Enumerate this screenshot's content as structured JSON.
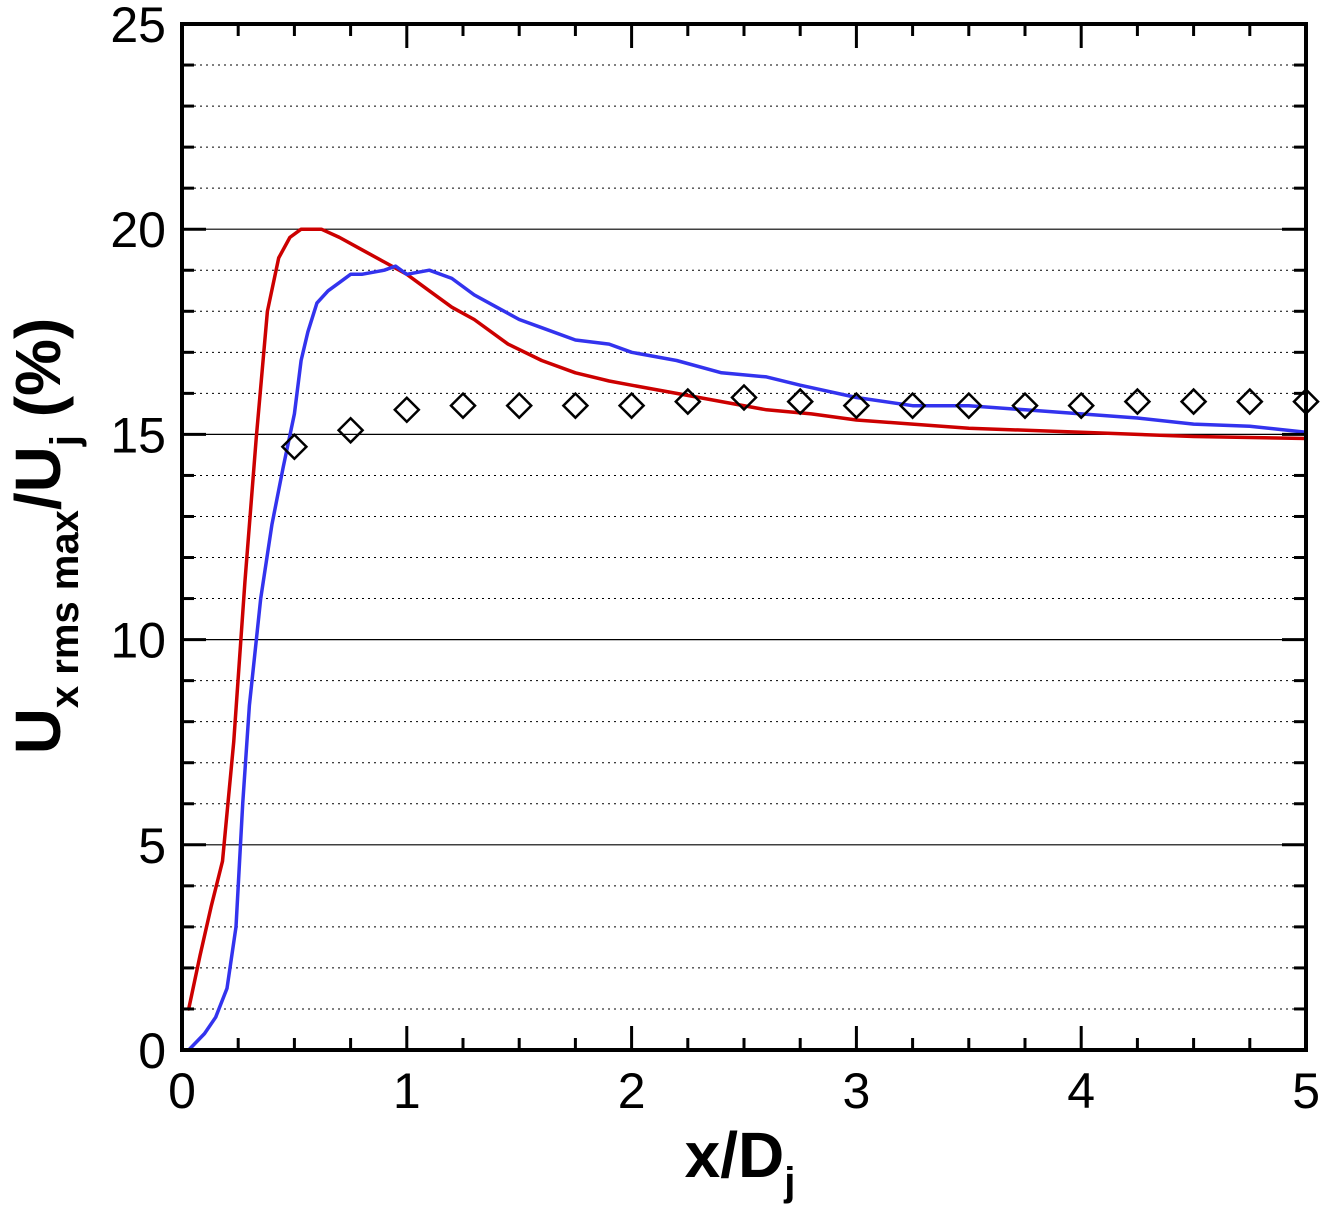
{
  "chart_data": {
    "type": "line",
    "title": "",
    "xlabel": {
      "main": "x/D",
      "sub": "j"
    },
    "ylabel": {
      "p1": "U",
      "sub1": "x rms max",
      "p2": "/U",
      "sub2": "j",
      "p3": " (%)"
    },
    "xlim": [
      0,
      5
    ],
    "ylim": [
      0,
      25
    ],
    "xticks": [
      "0",
      "1",
      "2",
      "3",
      "4",
      "5"
    ],
    "yticks": [
      "0",
      "5",
      "10",
      "15",
      "20",
      "25"
    ],
    "grid": {
      "major_y": true,
      "minor_y_dotted": true
    },
    "colors": {
      "red": "#cc0000",
      "blue": "#3333ee",
      "markers": "#000000"
    },
    "series": [
      {
        "style": "line",
        "color": "#cc0000",
        "x": [
          0.03,
          0.08,
          0.13,
          0.18,
          0.23,
          0.28,
          0.33,
          0.38,
          0.43,
          0.48,
          0.53,
          0.58,
          0.62,
          0.7,
          0.8,
          0.9,
          1.0,
          1.1,
          1.2,
          1.3,
          1.45,
          1.6,
          1.75,
          1.9,
          2.0,
          2.2,
          2.4,
          2.6,
          2.8,
          3.0,
          3.25,
          3.5,
          4.0,
          4.5,
          5.0
        ],
        "y": [
          1.0,
          2.3,
          3.5,
          4.6,
          7.5,
          11.4,
          14.9,
          18.0,
          19.3,
          19.8,
          20.0,
          20.0,
          20.0,
          19.8,
          19.5,
          19.2,
          18.9,
          18.5,
          18.1,
          17.8,
          17.2,
          16.8,
          16.5,
          16.3,
          16.2,
          16.0,
          15.8,
          15.6,
          15.5,
          15.35,
          15.25,
          15.15,
          15.05,
          14.95,
          14.9
        ]
      },
      {
        "style": "line",
        "color": "#3333ee",
        "x": [
          0.03,
          0.1,
          0.15,
          0.2,
          0.24,
          0.27,
          0.3,
          0.35,
          0.4,
          0.45,
          0.5,
          0.53,
          0.56,
          0.6,
          0.65,
          0.7,
          0.75,
          0.8,
          0.9,
          0.95,
          1.0,
          1.1,
          1.2,
          1.3,
          1.4,
          1.5,
          1.6,
          1.75,
          1.9,
          2.0,
          2.2,
          2.4,
          2.6,
          2.75,
          3.0,
          3.25,
          3.5,
          3.75,
          4.0,
          4.25,
          4.5,
          4.75,
          5.0
        ],
        "y": [
          0.0,
          0.4,
          0.8,
          1.5,
          3.0,
          6.0,
          8.4,
          11.0,
          12.8,
          14.2,
          15.5,
          16.8,
          17.5,
          18.2,
          18.5,
          18.7,
          18.9,
          18.9,
          19.0,
          19.1,
          18.9,
          19.0,
          18.8,
          18.4,
          18.1,
          17.8,
          17.6,
          17.3,
          17.2,
          17.0,
          16.8,
          16.5,
          16.4,
          16.2,
          15.9,
          15.7,
          15.7,
          15.6,
          15.5,
          15.4,
          15.25,
          15.2,
          15.05
        ]
      },
      {
        "style": "markers",
        "marker": "diamond",
        "color": "#000000",
        "x": [
          0.5,
          0.75,
          1.0,
          1.25,
          1.5,
          1.75,
          2.0,
          2.25,
          2.5,
          2.75,
          3.0,
          3.25,
          3.5,
          3.75,
          4.0,
          4.25,
          4.5,
          4.75,
          5.0
        ],
        "y": [
          14.7,
          15.1,
          15.6,
          15.7,
          15.7,
          15.7,
          15.7,
          15.8,
          15.9,
          15.8,
          15.7,
          15.7,
          15.7,
          15.7,
          15.7,
          15.8,
          15.8,
          15.8,
          15.8
        ]
      }
    ]
  }
}
